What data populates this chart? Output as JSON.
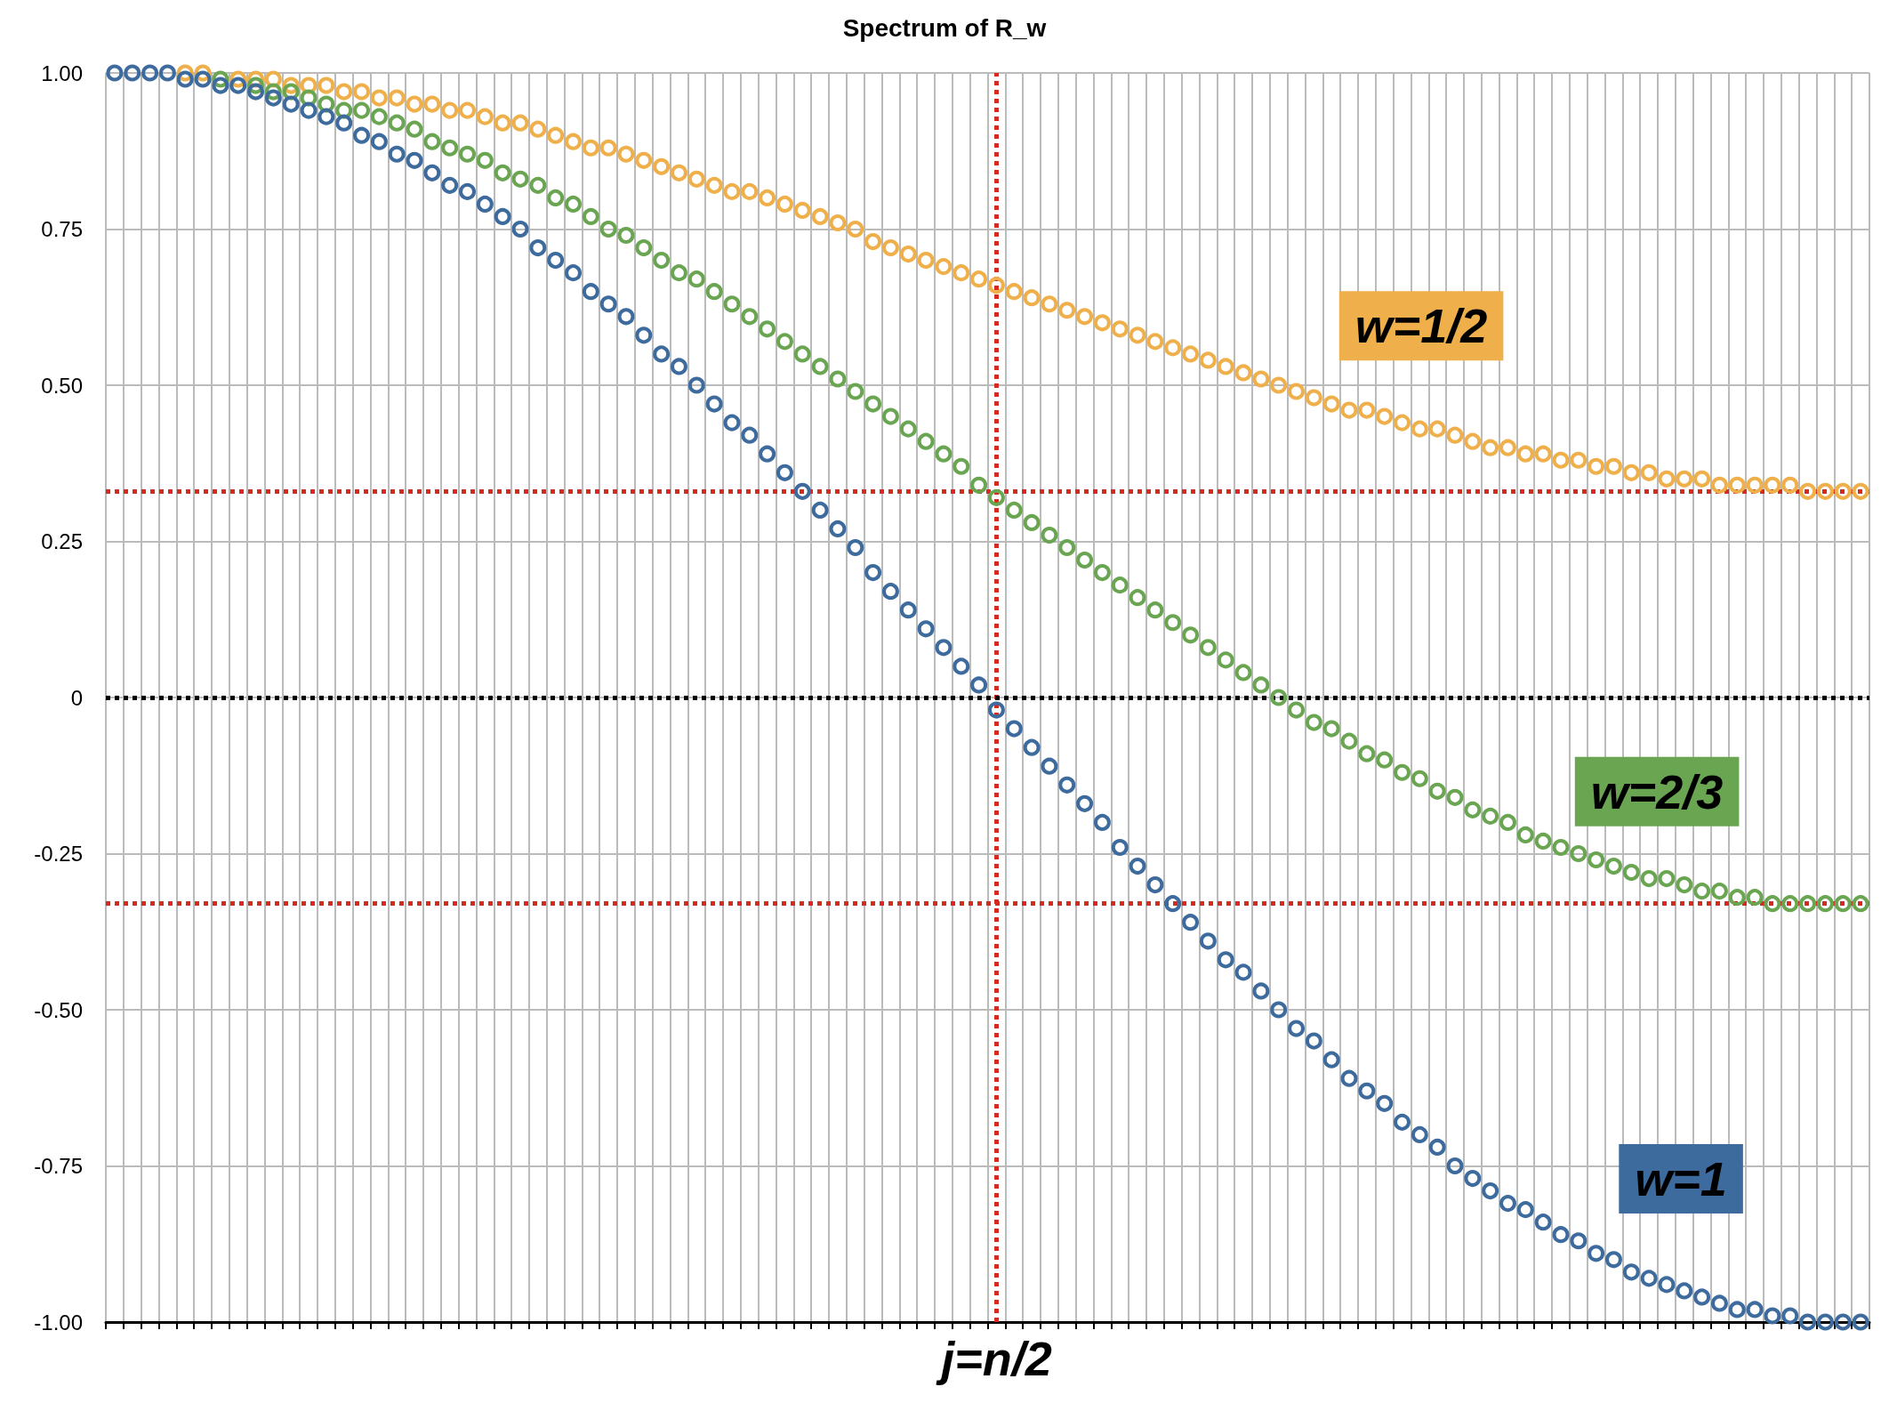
{
  "chart_data": {
    "type": "scatter",
    "title": "Spectrum of R_w",
    "marker": "circle",
    "grid": true,
    "legend": "right",
    "tick_labels": "y",
    "categories": [
      null,
      null,
      null,
      null,
      null,
      null,
      null,
      null,
      null,
      null,
      null,
      null,
      null,
      null,
      null,
      null,
      null,
      null,
      null,
      null,
      null,
      null,
      null,
      null,
      null,
      null,
      null,
      null,
      null,
      null,
      null,
      null,
      null,
      null,
      null,
      null,
      null,
      null,
      null,
      null,
      null,
      null,
      null,
      null,
      null,
      null,
      null,
      null,
      null,
      null,
      null,
      null,
      null,
      null,
      null,
      null,
      null,
      null,
      null,
      null,
      null,
      null,
      null,
      null,
      null,
      null,
      null,
      null,
      null,
      null,
      null,
      null,
      null,
      null,
      null,
      null,
      null,
      null,
      null,
      null,
      null,
      null,
      null,
      null,
      null,
      null,
      null,
      null,
      null,
      null,
      null,
      null,
      null,
      null,
      null,
      null,
      null,
      null,
      null,
      null
    ],
    "ylim": [
      -1,
      1
    ],
    "yticks": [
      {
        "value": -1,
        "label": "-1.00"
      },
      {
        "value": -0.75,
        "label": "-0.75"
      },
      {
        "value": -0.5,
        "label": "-0.50"
      },
      {
        "value": -0.25,
        "label": "-0.25"
      },
      {
        "value": 0,
        "label": "0"
      },
      {
        "value": 0.25,
        "label": "0.25"
      },
      {
        "value": 0.5,
        "label": "0.50"
      },
      {
        "value": 0.75,
        "label": "0.75"
      },
      {
        "value": 1,
        "label": "1.00"
      }
    ],
    "series": [
      {
        "name": "w=1/2",
        "color": "#efb04b",
        "values": [
          null,
          null,
          null,
          null,
          1.0,
          1.0,
          null,
          0.99,
          0.99,
          0.99,
          0.98,
          0.98,
          0.98,
          0.97,
          0.97,
          0.96,
          0.96,
          0.95,
          0.95,
          0.94,
          0.94,
          0.93,
          0.92,
          0.92,
          0.91,
          0.9,
          0.89,
          0.88,
          0.88,
          0.87,
          0.86,
          0.85,
          0.84,
          0.83,
          0.82,
          0.81,
          0.81,
          0.8,
          0.79,
          0.78,
          0.77,
          0.76,
          0.75,
          0.73,
          0.72,
          0.71,
          0.7,
          0.69,
          0.68,
          0.67,
          0.66,
          0.65,
          0.64,
          0.63,
          0.62,
          0.61,
          0.6,
          0.59,
          0.58,
          0.57,
          0.56,
          0.55,
          0.54,
          0.53,
          0.52,
          0.51,
          0.5,
          0.49,
          0.48,
          0.47,
          0.46,
          0.46,
          0.45,
          0.44,
          0.43,
          0.43,
          0.42,
          0.41,
          0.4,
          0.4,
          0.39,
          0.39,
          0.38,
          0.38,
          0.37,
          0.37,
          0.36,
          0.36,
          0.35,
          0.35,
          0.35,
          0.34,
          0.34,
          0.34,
          0.34,
          0.34,
          0.33,
          0.33,
          0.33,
          0.33
        ]
      },
      {
        "name": "w=2/3",
        "color": "#6aa552",
        "values": [
          null,
          null,
          null,
          null,
          null,
          null,
          0.99,
          null,
          0.98,
          0.97,
          0.97,
          0.96,
          0.95,
          0.94,
          0.94,
          0.93,
          0.92,
          0.91,
          0.89,
          0.88,
          0.87,
          0.86,
          0.84,
          0.83,
          0.82,
          0.8,
          0.79,
          0.77,
          0.75,
          0.74,
          0.72,
          0.7,
          0.68,
          0.67,
          0.65,
          0.63,
          0.61,
          0.59,
          0.57,
          0.55,
          0.53,
          0.51,
          0.49,
          0.47,
          0.45,
          0.43,
          0.41,
          0.39,
          0.37,
          0.34,
          0.32,
          0.3,
          0.28,
          0.26,
          0.24,
          0.22,
          0.2,
          0.18,
          0.16,
          0.14,
          0.12,
          0.1,
          0.08,
          0.06,
          0.04,
          0.02,
          0.0,
          -0.02,
          -0.04,
          -0.05,
          -0.07,
          -0.09,
          -0.1,
          -0.12,
          -0.13,
          -0.15,
          -0.16,
          -0.18,
          -0.19,
          -0.2,
          -0.22,
          -0.23,
          -0.24,
          -0.25,
          -0.26,
          -0.27,
          -0.28,
          -0.29,
          -0.29,
          -0.3,
          -0.31,
          -0.31,
          -0.32,
          -0.32,
          -0.33,
          -0.33,
          -0.33,
          -0.33,
          -0.33,
          -0.33
        ]
      },
      {
        "name": "w=1",
        "color": "#3d6b9e",
        "values": [
          1.0,
          1.0,
          1.0,
          1.0,
          0.99,
          0.99,
          0.98,
          0.98,
          0.97,
          0.96,
          0.95,
          0.94,
          0.93,
          0.92,
          0.9,
          0.89,
          0.87,
          0.86,
          0.84,
          0.82,
          0.81,
          0.79,
          0.77,
          0.75,
          0.72,
          0.7,
          0.68,
          0.65,
          0.63,
          0.61,
          0.58,
          0.55,
          0.53,
          0.5,
          0.47,
          0.44,
          0.42,
          0.39,
          0.36,
          0.33,
          0.3,
          0.27,
          0.24,
          0.2,
          0.17,
          0.14,
          0.11,
          0.08,
          0.05,
          0.02,
          -0.02,
          -0.05,
          -0.08,
          -0.11,
          -0.14,
          -0.17,
          -0.2,
          -0.24,
          -0.27,
          -0.3,
          -0.33,
          -0.36,
          -0.39,
          -0.42,
          -0.44,
          -0.47,
          -0.5,
          -0.53,
          -0.55,
          -0.58,
          -0.61,
          -0.63,
          -0.65,
          -0.68,
          -0.7,
          -0.72,
          -0.75,
          -0.77,
          -0.79,
          -0.81,
          -0.82,
          -0.84,
          -0.86,
          -0.87,
          -0.89,
          -0.9,
          -0.92,
          -0.93,
          -0.94,
          -0.95,
          -0.96,
          -0.97,
          -0.98,
          -0.98,
          -0.99,
          -0.99,
          -1.0,
          -1.0,
          -1.0,
          -1.0
        ]
      }
    ],
    "ref_lines": [
      {
        "axis": "x",
        "label": "j=n/2",
        "color": "#d52b1e",
        "line_style": "dotted"
      },
      {
        "axis": "y",
        "value": 0.33,
        "color": "#d52b1e",
        "line_style": "dotted"
      },
      {
        "axis": "y",
        "value": -0.33,
        "color": "#d52b1e",
        "line_style": "dotted"
      },
      {
        "axis": "y",
        "value": 0,
        "color": "#000000",
        "line_style": "dotted"
      }
    ]
  }
}
